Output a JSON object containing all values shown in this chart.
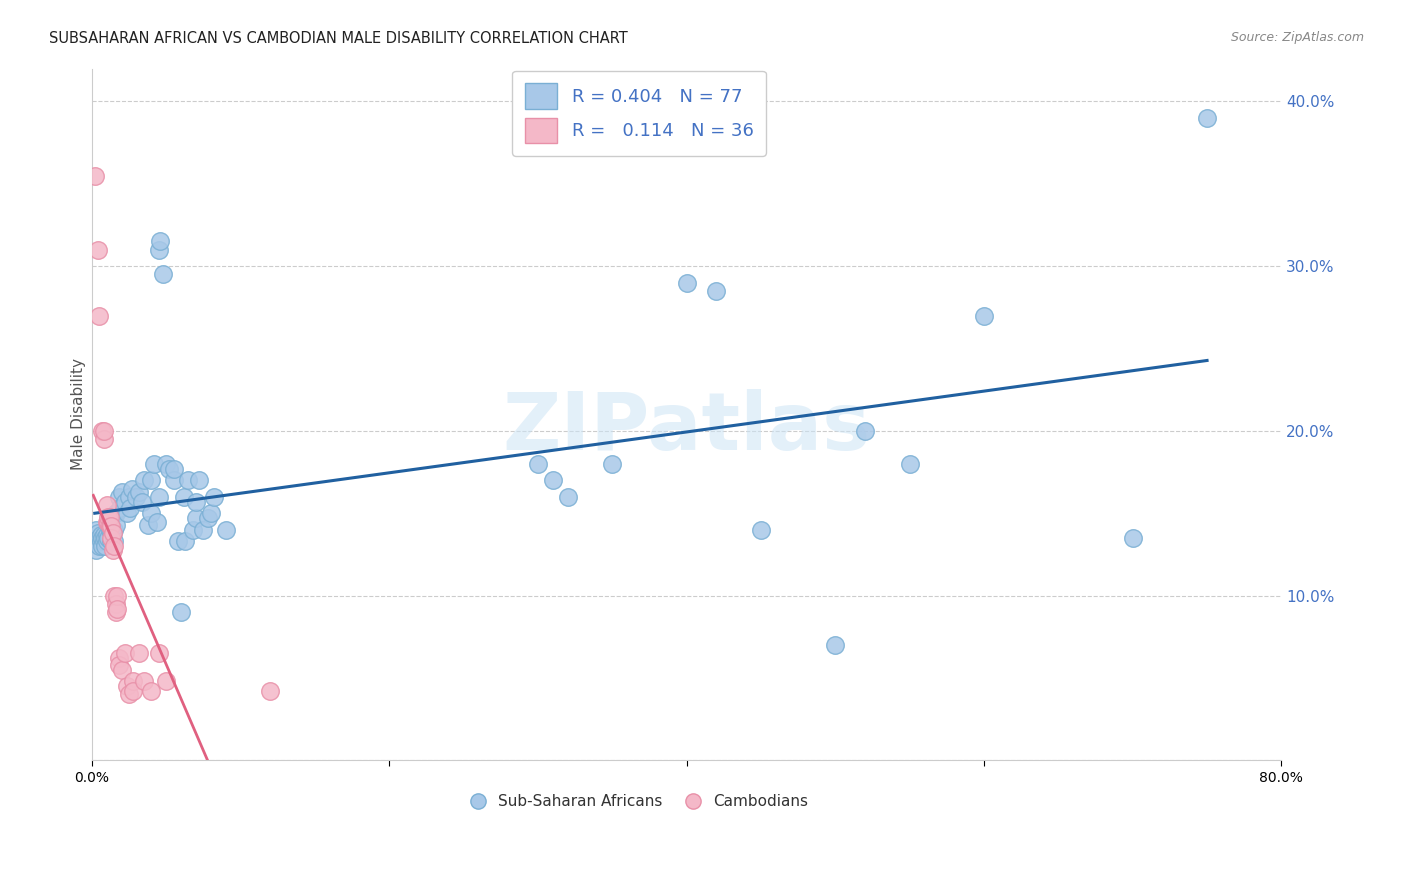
{
  "title": "SUBSAHARAN AFRICAN VS CAMBODIAN MALE DISABILITY CORRELATION CHART",
  "source": "Source: ZipAtlas.com",
  "ylabel": "Male Disability",
  "xlim": [
    0.0,
    0.8
  ],
  "ylim": [
    0.0,
    0.42
  ],
  "blue_R": "0.404",
  "blue_N": "77",
  "pink_R": "0.114",
  "pink_N": "36",
  "blue_color": "#a8c8e8",
  "blue_edge": "#7aafd4",
  "pink_color": "#f4b8c8",
  "pink_edge": "#e890a8",
  "blue_line_color": "#2060a0",
  "pink_line_color": "#e06080",
  "pink_dash_color": "#e8a0b0",
  "grid_color": "#cccccc",
  "watermark": "ZIPatlas",
  "blue_scatter": [
    [
      0.002,
      0.133
    ],
    [
      0.003,
      0.128
    ],
    [
      0.003,
      0.14
    ],
    [
      0.004,
      0.133
    ],
    [
      0.004,
      0.138
    ],
    [
      0.005,
      0.135
    ],
    [
      0.005,
      0.13
    ],
    [
      0.006,
      0.137
    ],
    [
      0.006,
      0.133
    ],
    [
      0.007,
      0.135
    ],
    [
      0.007,
      0.13
    ],
    [
      0.008,
      0.137
    ],
    [
      0.008,
      0.133
    ],
    [
      0.009,
      0.135
    ],
    [
      0.009,
      0.13
    ],
    [
      0.01,
      0.137
    ],
    [
      0.01,
      0.133
    ],
    [
      0.011,
      0.135
    ],
    [
      0.012,
      0.14
    ],
    [
      0.013,
      0.133
    ],
    [
      0.013,
      0.14
    ],
    [
      0.015,
      0.133
    ],
    [
      0.015,
      0.14
    ],
    [
      0.016,
      0.15
    ],
    [
      0.016,
      0.143
    ],
    [
      0.018,
      0.16
    ],
    [
      0.019,
      0.153
    ],
    [
      0.02,
      0.163
    ],
    [
      0.022,
      0.157
    ],
    [
      0.024,
      0.15
    ],
    [
      0.025,
      0.16
    ],
    [
      0.026,
      0.153
    ],
    [
      0.027,
      0.165
    ],
    [
      0.03,
      0.16
    ],
    [
      0.032,
      0.163
    ],
    [
      0.034,
      0.157
    ],
    [
      0.035,
      0.17
    ],
    [
      0.038,
      0.143
    ],
    [
      0.04,
      0.15
    ],
    [
      0.04,
      0.17
    ],
    [
      0.042,
      0.18
    ],
    [
      0.044,
      0.145
    ],
    [
      0.045,
      0.16
    ],
    [
      0.045,
      0.31
    ],
    [
      0.046,
      0.315
    ],
    [
      0.048,
      0.295
    ],
    [
      0.05,
      0.18
    ],
    [
      0.052,
      0.177
    ],
    [
      0.055,
      0.17
    ],
    [
      0.055,
      0.177
    ],
    [
      0.058,
      0.133
    ],
    [
      0.06,
      0.09
    ],
    [
      0.062,
      0.16
    ],
    [
      0.063,
      0.133
    ],
    [
      0.065,
      0.17
    ],
    [
      0.068,
      0.14
    ],
    [
      0.07,
      0.147
    ],
    [
      0.07,
      0.157
    ],
    [
      0.072,
      0.17
    ],
    [
      0.075,
      0.14
    ],
    [
      0.078,
      0.147
    ],
    [
      0.08,
      0.15
    ],
    [
      0.082,
      0.16
    ],
    [
      0.09,
      0.14
    ],
    [
      0.3,
      0.18
    ],
    [
      0.31,
      0.17
    ],
    [
      0.32,
      0.16
    ],
    [
      0.35,
      0.18
    ],
    [
      0.4,
      0.29
    ],
    [
      0.42,
      0.285
    ],
    [
      0.45,
      0.14
    ],
    [
      0.5,
      0.07
    ],
    [
      0.52,
      0.2
    ],
    [
      0.55,
      0.18
    ],
    [
      0.6,
      0.27
    ],
    [
      0.7,
      0.135
    ],
    [
      0.75,
      0.39
    ]
  ],
  "pink_scatter": [
    [
      0.002,
      0.355
    ],
    [
      0.004,
      0.31
    ],
    [
      0.005,
      0.27
    ],
    [
      0.007,
      0.2
    ],
    [
      0.008,
      0.195
    ],
    [
      0.008,
      0.2
    ],
    [
      0.01,
      0.145
    ],
    [
      0.01,
      0.155
    ],
    [
      0.011,
      0.145
    ],
    [
      0.011,
      0.148
    ],
    [
      0.012,
      0.142
    ],
    [
      0.012,
      0.148
    ],
    [
      0.013,
      0.142
    ],
    [
      0.013,
      0.135
    ],
    [
      0.014,
      0.138
    ],
    [
      0.014,
      0.128
    ],
    [
      0.015,
      0.13
    ],
    [
      0.015,
      0.1
    ],
    [
      0.016,
      0.095
    ],
    [
      0.016,
      0.09
    ],
    [
      0.017,
      0.1
    ],
    [
      0.017,
      0.092
    ],
    [
      0.018,
      0.062
    ],
    [
      0.018,
      0.058
    ],
    [
      0.02,
      0.055
    ],
    [
      0.022,
      0.065
    ],
    [
      0.024,
      0.045
    ],
    [
      0.025,
      0.04
    ],
    [
      0.028,
      0.048
    ],
    [
      0.028,
      0.042
    ],
    [
      0.032,
      0.065
    ],
    [
      0.035,
      0.048
    ],
    [
      0.04,
      0.042
    ],
    [
      0.045,
      0.065
    ],
    [
      0.05,
      0.048
    ],
    [
      0.12,
      0.042
    ]
  ]
}
